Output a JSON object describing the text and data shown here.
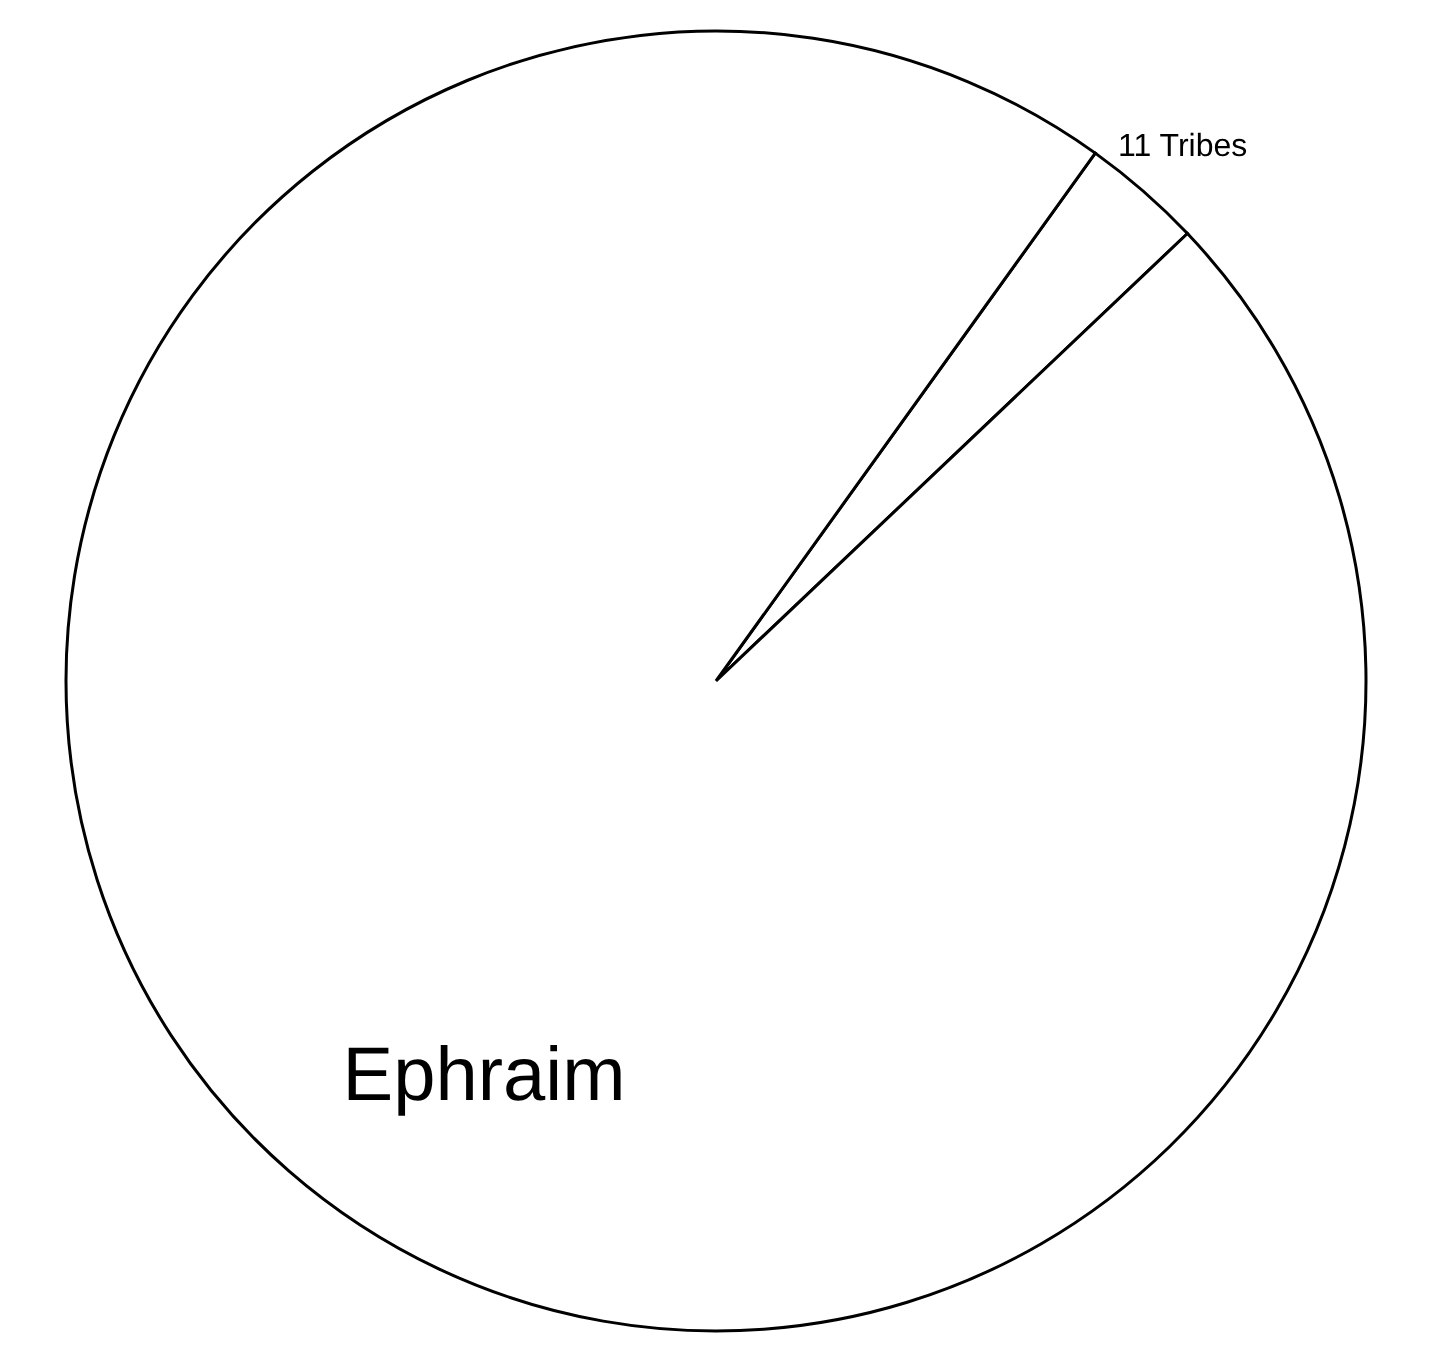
{
  "chart_data": {
    "type": "pie",
    "categories": [
      "11 Tribes",
      "Ephraim"
    ],
    "values": [
      3,
      97
    ],
    "colors": [
      "#ffffff",
      "#ffffff"
    ],
    "legend": false
  }
}
